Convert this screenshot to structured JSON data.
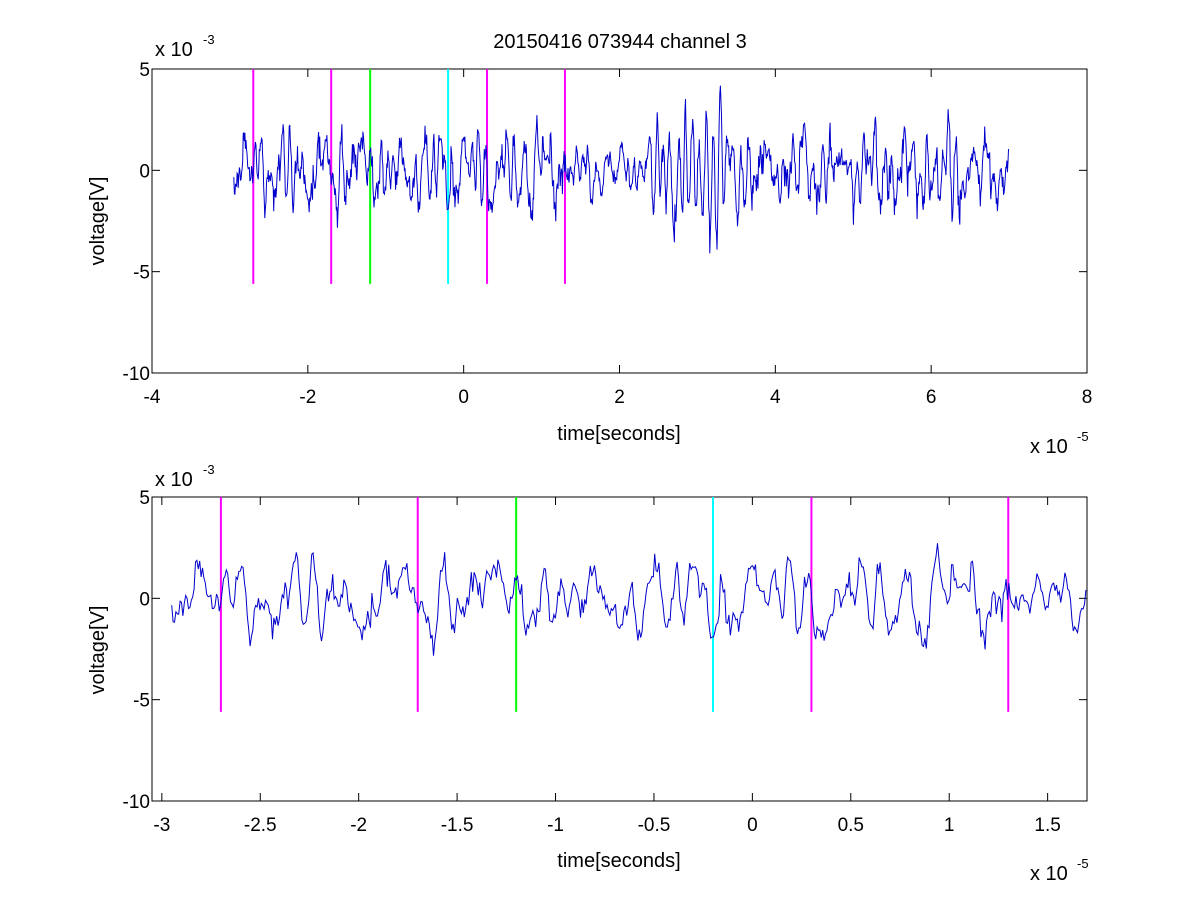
{
  "figure": {
    "title": "20150416 073944 channel 3",
    "colors": {
      "trace": "#0000cc",
      "magenta": "#ff00ff",
      "green": "#00ff00",
      "cyan": "#00ffff",
      "axis": "#000000",
      "background": "#ffffff"
    }
  },
  "chart_data": [
    {
      "type": "line",
      "title": "20150416 073944 channel 3",
      "xlabel": "time[seconds]",
      "ylabel": "voltage[V]",
      "x_multiplier_label": "x 10",
      "x_multiplier_exp": "-5",
      "y_multiplier_label": "x 10",
      "y_multiplier_exp": "-3",
      "xlim": [
        -4,
        8
      ],
      "ylim": [
        -10,
        5
      ],
      "x_ticks": [
        -4,
        -2,
        0,
        2,
        4,
        6,
        8
      ],
      "x_tick_labels": [
        "-4",
        "-2",
        "0",
        "2",
        "4",
        "6",
        "8"
      ],
      "y_ticks": [
        -10,
        -5,
        0,
        5
      ],
      "y_tick_labels": [
        "-10",
        "-5",
        "0",
        "5"
      ],
      "grid": false,
      "series_range": [
        -2.95,
        7.0
      ],
      "seed": 7,
      "burst": {
        "center": 3.1,
        "width": 0.6,
        "amplitude": 2.3
      },
      "markers": [
        {
          "x": -2.7,
          "y_range": [
            -5.6,
            5
          ],
          "color": "magenta"
        },
        {
          "x": -1.7,
          "y_range": [
            -5.6,
            5
          ],
          "color": "magenta"
        },
        {
          "x": -1.2,
          "y_range": [
            -5.6,
            5
          ],
          "color": "green"
        },
        {
          "x": -0.2,
          "y_range": [
            -5.6,
            5
          ],
          "color": "cyan"
        },
        {
          "x": 0.3,
          "y_range": [
            -5.6,
            5
          ],
          "color": "magenta"
        },
        {
          "x": 1.3,
          "y_range": [
            -5.6,
            5
          ],
          "color": "magenta"
        }
      ]
    },
    {
      "type": "line",
      "title": "",
      "xlabel": "time[seconds]",
      "ylabel": "voltage[V]",
      "x_multiplier_label": "x 10",
      "x_multiplier_exp": "-5",
      "y_multiplier_label": "x 10",
      "y_multiplier_exp": "-3",
      "xlim": [
        -3.05,
        1.7
      ],
      "ylim": [
        -10,
        5
      ],
      "x_ticks": [
        -3,
        -2.5,
        -2,
        -1.5,
        -1,
        -0.5,
        0,
        0.5,
        1,
        1.5
      ],
      "x_tick_labels": [
        "-3",
        "-2.5",
        "-2",
        "-1.5",
        "-1",
        "-0.5",
        "0",
        "0.5",
        "1",
        "1.5"
      ],
      "y_ticks": [
        -10,
        -5,
        0,
        5
      ],
      "y_tick_labels": [
        "-10",
        "-5",
        "0",
        "5"
      ],
      "grid": false,
      "series_range": [
        -2.95,
        1.7
      ],
      "seed": 7,
      "burst": {
        "center": 3.1,
        "width": 0.6,
        "amplitude": 2.3
      },
      "markers": [
        {
          "x": -2.7,
          "y_range": [
            -5.6,
            5
          ],
          "color": "magenta"
        },
        {
          "x": -1.7,
          "y_range": [
            -5.6,
            5
          ],
          "color": "magenta"
        },
        {
          "x": -1.2,
          "y_range": [
            -5.6,
            5
          ],
          "color": "green"
        },
        {
          "x": -0.2,
          "y_range": [
            -5.6,
            5
          ],
          "color": "cyan"
        },
        {
          "x": 0.3,
          "y_range": [
            -5.6,
            5
          ],
          "color": "magenta"
        },
        {
          "x": 1.3,
          "y_range": [
            -5.6,
            5
          ],
          "color": "magenta"
        }
      ]
    }
  ]
}
